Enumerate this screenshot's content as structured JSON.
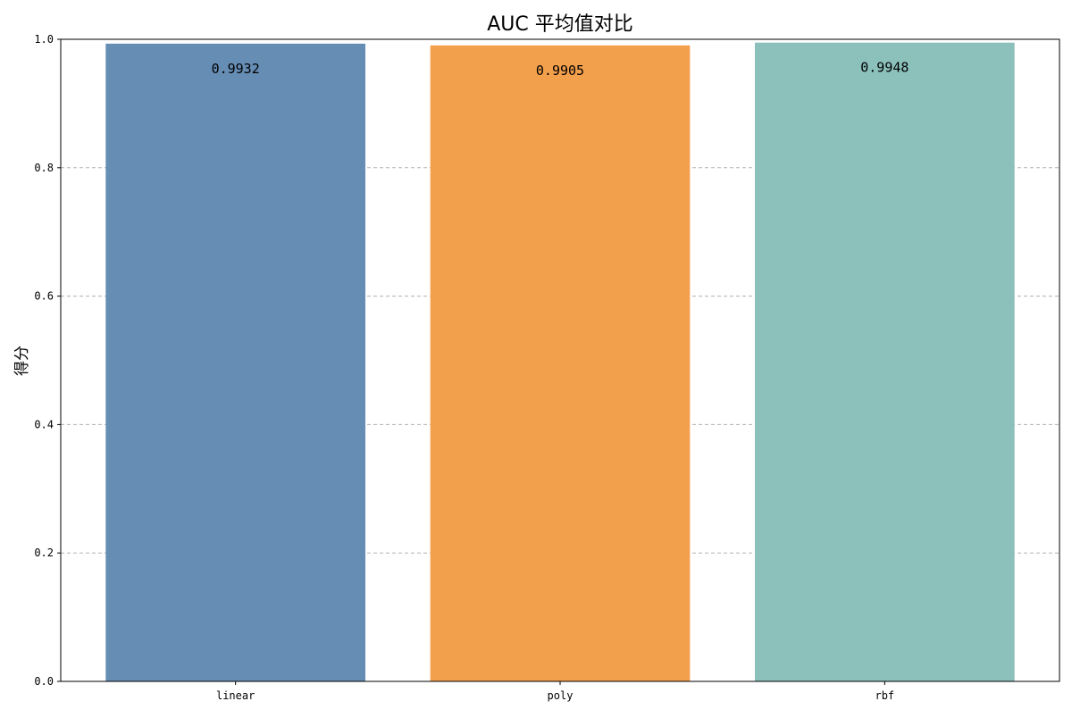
{
  "chart_data": {
    "type": "bar",
    "title": "AUC 平均值对比",
    "xlabel": "",
    "ylabel": "得分",
    "categories": [
      "linear",
      "poly",
      "rbf"
    ],
    "values": [
      0.9932,
      0.9905,
      0.9948
    ],
    "value_labels": [
      "0.9932",
      "0.9905",
      "0.9948"
    ],
    "colors": [
      "#668db4",
      "#f3a04d",
      "#8bc0bb"
    ],
    "ylim": [
      0,
      1.0
    ],
    "yticks": [
      0.0,
      0.2,
      0.4,
      0.6,
      0.8,
      1.0
    ],
    "ytick_labels": [
      "0.0",
      "0.2",
      "0.4",
      "0.6",
      "0.8",
      "1.0"
    ],
    "grid": "y-dashed",
    "legend": "none"
  }
}
